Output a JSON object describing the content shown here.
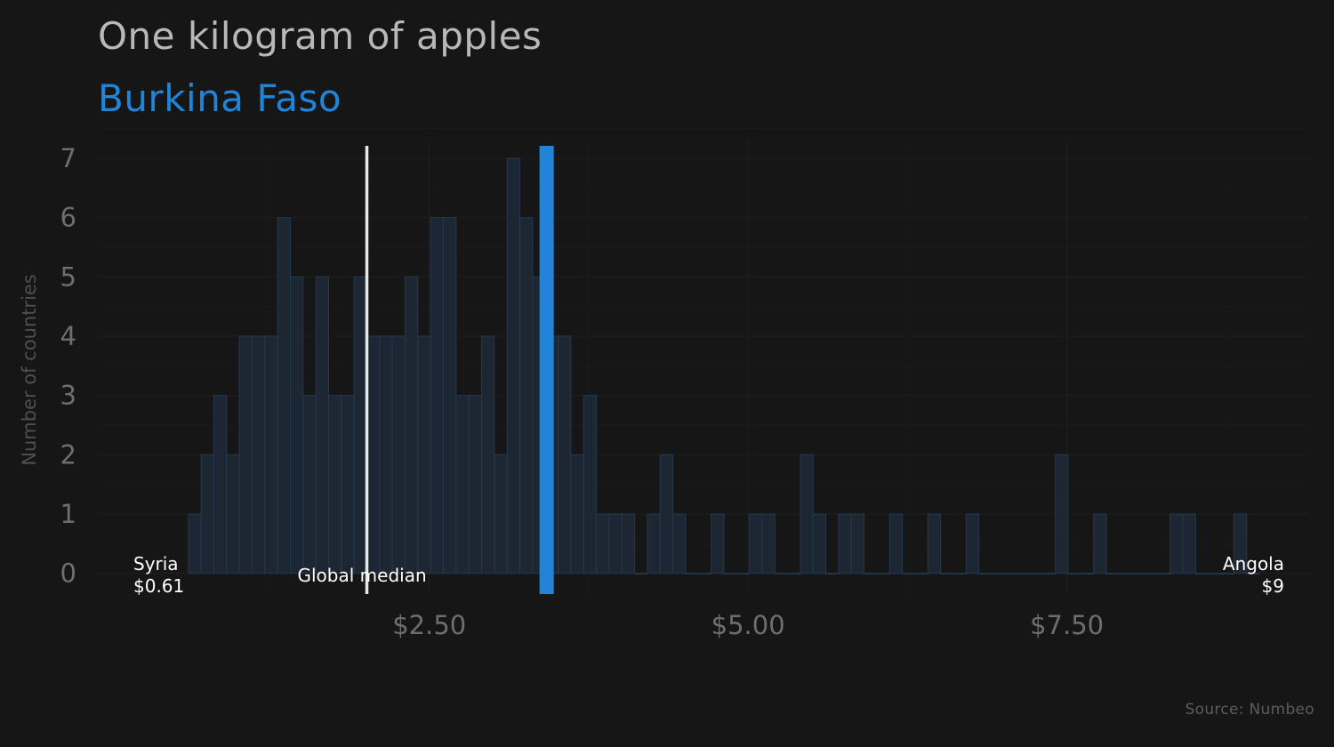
{
  "title": "One kilogram of apples",
  "subtitle": "Burkina Faso",
  "caption": "Source: Numbeo",
  "colors": {
    "background": "#161616",
    "highlight": "#2085d8",
    "bars_fill": "#1c2733",
    "bars_stroke": "#25384d",
    "median_line": "#e8e8e8",
    "grid": "#1d1d1d"
  },
  "chart_data": {
    "type": "bar",
    "description_of_bins": "histogram of country prices, bin width 0.1 USD",
    "ylabel": "Number of countries",
    "xlim": [
      -0.1,
      9.4
    ],
    "ylim": [
      -0.35,
      7.3
    ],
    "x_ticks": [
      2.5,
      5.0,
      7.5
    ],
    "x_tick_labels": [
      "$2.50",
      "$5.00",
      "$7.50"
    ],
    "y_ticks": [
      0,
      1,
      2,
      3,
      4,
      5,
      6,
      7
    ],
    "y_tick_labels": [
      "0",
      "1",
      "2",
      "3",
      "4",
      "5",
      "6",
      "7"
    ],
    "bin_width": 0.1,
    "bin_starts": [
      0.61,
      0.71,
      0.81,
      0.91,
      1.01,
      1.11,
      1.21,
      1.31,
      1.41,
      1.51,
      1.61,
      1.71,
      1.81,
      1.91,
      2.01,
      2.11,
      2.21,
      2.31,
      2.41,
      2.51,
      2.61,
      2.71,
      2.81,
      2.91,
      3.01,
      3.11,
      3.21,
      3.31,
      3.41,
      3.51,
      3.61,
      3.71,
      3.81,
      3.91,
      4.01,
      4.11,
      4.21,
      4.31,
      4.41,
      4.51,
      4.61,
      4.71,
      4.81,
      4.91,
      5.01,
      5.11,
      5.21,
      5.31,
      5.41,
      5.51,
      5.61,
      5.71,
      5.81,
      5.91,
      6.01,
      6.11,
      6.21,
      6.31,
      6.41,
      6.51,
      6.61,
      6.71,
      6.81,
      6.91,
      7.01,
      7.11,
      7.21,
      7.31,
      7.41,
      7.51,
      7.61,
      7.71,
      7.81,
      7.91,
      8.01,
      8.11,
      8.21,
      8.31,
      8.41,
      8.51,
      8.61,
      8.71,
      8.81,
      8.91
    ],
    "counts": [
      1,
      2,
      3,
      2,
      4,
      4,
      4,
      6,
      5,
      3,
      5,
      3,
      3,
      5,
      4,
      4,
      4,
      5,
      4,
      6,
      6,
      3,
      3,
      4,
      2,
      7,
      6,
      5,
      4,
      4,
      2,
      3,
      1,
      1,
      1,
      0,
      1,
      2,
      1,
      0,
      0,
      1,
      0,
      0,
      1,
      1,
      0,
      0,
      2,
      1,
      0,
      1,
      1,
      0,
      0,
      1,
      0,
      0,
      1,
      0,
      0,
      1,
      0,
      0,
      0,
      0,
      0,
      0,
      2,
      0,
      0,
      1,
      0,
      0,
      0,
      0,
      0,
      1,
      1,
      0,
      0,
      0,
      1,
      0
    ],
    "global_median": 2.01,
    "global_median_label": "Global  median",
    "highlight_value": 3.42,
    "annotations": [
      {
        "name": "Syria",
        "value_label": "$0.61",
        "x": 0.61,
        "align": "start"
      },
      {
        "name": "Angola",
        "value_label": "$9",
        "x": 9.0,
        "align": "end"
      }
    ]
  }
}
